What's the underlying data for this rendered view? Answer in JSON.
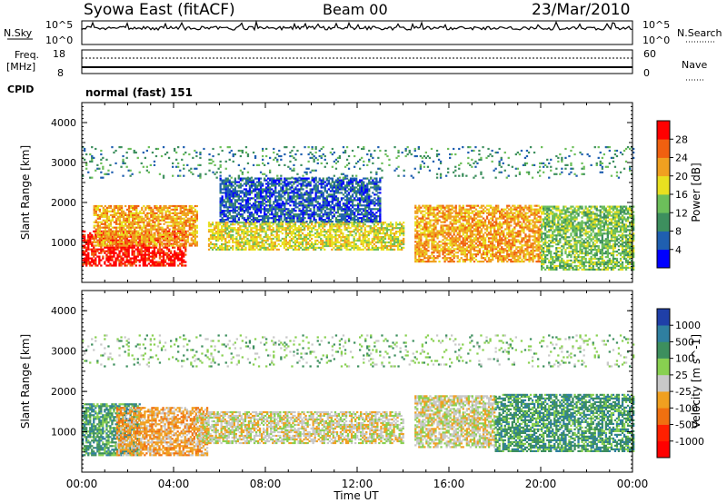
{
  "header": {
    "station": "Syowa East (fitACF)",
    "beam": "Beam 00",
    "date": "23/Mar/2010"
  },
  "panels": {
    "nsky": {
      "label": "N.Sky",
      "ytick_top": "10^5",
      "ytick_bottom": "10^0",
      "right_label": "N.Search",
      "right_top": "10^5",
      "right_bottom": "10^0"
    },
    "freq": {
      "label_line1": "Freq.",
      "label_line2": "[MHz]",
      "left_top": "18",
      "left_bottom": "8",
      "right_top": "60",
      "right_bottom": "0",
      "right_label": "Nave"
    },
    "cpid": {
      "label": "CPID",
      "value": "normal (fast) 151"
    }
  },
  "colors": {
    "power": [
      "#0000ff",
      "#1f5fb0",
      "#3d8f5e",
      "#6cbf5a",
      "#e8e020",
      "#f0a020",
      "#f06010",
      "#ff0000"
    ],
    "velocity": [
      "#1f3fa8",
      "#2f7fa0",
      "#3d8f5e",
      "#88d050",
      "#c8c8c8",
      "#f0a020",
      "#f07010",
      "#ff2000",
      "#ff0000"
    ]
  },
  "chart_data": [
    {
      "type": "heatmap",
      "title": "",
      "xlabel": "",
      "ylabel": "Slant Range [km]",
      "ylim": [
        0,
        4500
      ],
      "yticks": [
        "1000",
        "2000",
        "3000",
        "4000"
      ],
      "colorbar": {
        "label": "Power [dB]",
        "ticks": [
          "4",
          "8",
          "12",
          "16",
          "20",
          "24",
          "28"
        ]
      },
      "regions": [
        {
          "t0": 0.0,
          "t1": 4.5,
          "r0": 400,
          "r1": 1300,
          "level": 7
        },
        {
          "t0": 0.5,
          "t1": 5.0,
          "r0": 900,
          "r1": 1900,
          "level": 5
        },
        {
          "t0": 5.5,
          "t1": 14.0,
          "r0": 800,
          "r1": 1500,
          "level": 4
        },
        {
          "t0": 6.0,
          "t1": 13.0,
          "r0": 1500,
          "r1": 2600,
          "level": 1
        },
        {
          "t0": 14.5,
          "t1": 20.0,
          "r0": 500,
          "r1": 1900,
          "level": 5
        },
        {
          "t0": 20.0,
          "t1": 24.0,
          "r0": 300,
          "r1": 1900,
          "level": 3
        },
        {
          "t0": 0.0,
          "t1": 24.0,
          "r0": 2600,
          "r1": 3400,
          "level": 2
        }
      ]
    },
    {
      "type": "heatmap",
      "title": "",
      "xlabel": "Time UT",
      "ylabel": "Slant Range [km]",
      "ylim": [
        0,
        4500
      ],
      "yticks": [
        "1000",
        "2000",
        "3000",
        "4000"
      ],
      "xticks": [
        "00:00",
        "04:00",
        "08:00",
        "12:00",
        "16:00",
        "20:00",
        "00:00"
      ],
      "colorbar": {
        "label": "Velocity [m s^-1]",
        "ticks": [
          "1000",
          "500",
          "100",
          "25",
          "-25",
          "-100",
          "-500",
          "-1000"
        ]
      },
      "regions": [
        {
          "t0": 0.0,
          "t1": 2.5,
          "r0": 400,
          "r1": 1700,
          "level": 2
        },
        {
          "t0": 1.5,
          "t1": 5.5,
          "r0": 400,
          "r1": 1600,
          "level": 5
        },
        {
          "t0": 5.0,
          "t1": 14.0,
          "r0": 700,
          "r1": 1500,
          "level": 4
        },
        {
          "t0": 14.5,
          "t1": 18.0,
          "r0": 600,
          "r1": 1900,
          "level": 4
        },
        {
          "t0": 18.0,
          "t1": 24.0,
          "r0": 500,
          "r1": 1900,
          "level": 2
        },
        {
          "t0": 0.0,
          "t1": 24.0,
          "r0": 2600,
          "r1": 3400,
          "level": 3
        }
      ]
    }
  ]
}
